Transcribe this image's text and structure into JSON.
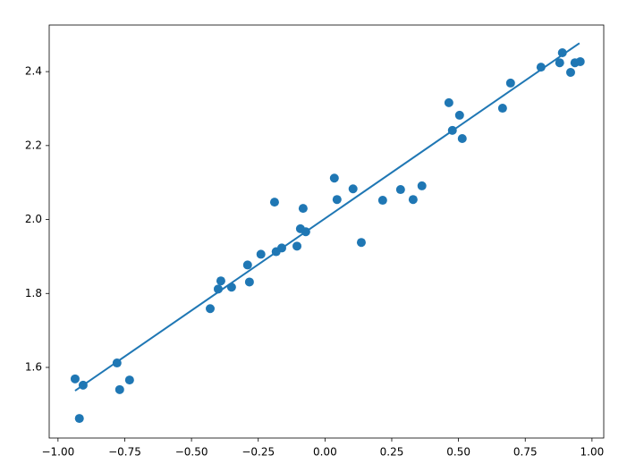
{
  "chart_data": {
    "type": "scatter",
    "xlim": [
      -1.033,
      1.044
    ],
    "ylim": [
      1.409,
      2.526
    ],
    "xticks": [
      {
        "value": -1,
        "label": "−1.00"
      },
      {
        "value": -0.75,
        "label": "−0.75"
      },
      {
        "value": -0.5,
        "label": "−0.50"
      },
      {
        "value": -0.25,
        "label": "−0.25"
      },
      {
        "value": 0,
        "label": "0.00"
      },
      {
        "value": 0.25,
        "label": "0.25"
      },
      {
        "value": 0.5,
        "label": "0.50"
      },
      {
        "value": 0.75,
        "label": "0.75"
      },
      {
        "value": 1,
        "label": "1.00"
      }
    ],
    "yticks": [
      1.6,
      1.8,
      {
        "value": 2,
        "label": "2.0"
      },
      2.2,
      2.4
    ],
    "series": [
      {
        "type": "scatter",
        "color": "#1f77b4",
        "x": [
          -0.936,
          -0.906,
          -0.92,
          -0.779,
          -0.769,
          -0.732,
          -0.43,
          -0.4,
          -0.39,
          -0.35,
          -0.29,
          -0.283,
          -0.24,
          -0.189,
          -0.183,
          -0.162,
          -0.105,
          -0.092,
          -0.082,
          -0.072,
          0.035,
          0.045,
          0.105,
          0.136,
          0.216,
          0.283,
          0.33,
          0.363,
          0.464,
          0.477,
          0.504,
          0.514,
          0.665,
          0.695,
          0.809,
          0.879,
          0.889,
          0.92,
          0.936,
          0.956
        ],
        "values": [
          1.569,
          1.552,
          1.462,
          1.612,
          1.54,
          1.566,
          1.759,
          1.812,
          1.834,
          1.817,
          1.877,
          1.831,
          1.906,
          2.047,
          1.913,
          1.923,
          1.928,
          1.975,
          2.03,
          1.967,
          2.112,
          2.054,
          2.083,
          1.938,
          2.052,
          2.081,
          2.054,
          2.091,
          2.316,
          2.241,
          2.282,
          2.219,
          2.301,
          2.369,
          2.412,
          2.424,
          2.451,
          2.398,
          2.424,
          2.427
        ]
      },
      {
        "type": "line",
        "color": "#1f77b4",
        "x": [
          -0.936,
          0.953
        ],
        "values": [
          1.537,
          2.477
        ]
      }
    ]
  }
}
